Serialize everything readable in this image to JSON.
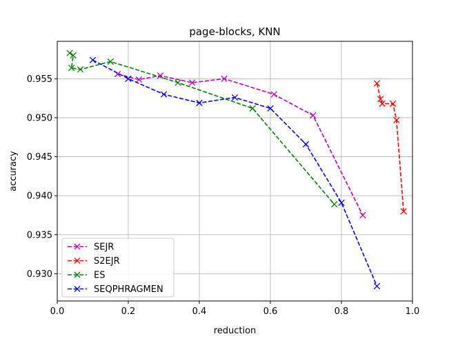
{
  "chart_data": {
    "type": "line",
    "title": "page-blocks, KNN",
    "xlabel": "reduction",
    "ylabel": "accuracy",
    "xlim": [
      0.0,
      1.0
    ],
    "ylim": [
      0.9265,
      0.9598
    ],
    "xticks": [
      0.0,
      0.2,
      0.4,
      0.6,
      0.8,
      1.0
    ],
    "xtick_labels": [
      "0.0",
      "0.2",
      "0.4",
      "0.6",
      "0.8",
      "1.0"
    ],
    "yticks": [
      0.93,
      0.935,
      0.94,
      0.945,
      0.95,
      0.955
    ],
    "ytick_labels": [
      "0.930",
      "0.935",
      "0.940",
      "0.945",
      "0.950",
      "0.955"
    ],
    "grid": true,
    "legend_position": "lower-left",
    "series": [
      {
        "name": "SEJR",
        "color": "#bf00bf",
        "marker": "x",
        "linestyle": "dashed",
        "points": [
          [
            0.17,
            0.9556
          ],
          [
            0.23,
            0.9549
          ],
          [
            0.29,
            0.9554
          ],
          [
            0.38,
            0.9545
          ],
          [
            0.47,
            0.955
          ],
          [
            0.61,
            0.953
          ],
          [
            0.72,
            0.9503
          ],
          [
            0.86,
            0.9375
          ]
        ]
      },
      {
        "name": "S2EJR",
        "color": "#ff0000",
        "marker": "x",
        "linestyle": "dashed",
        "points": [
          [
            0.9,
            0.9544
          ],
          [
            0.91,
            0.9524
          ],
          [
            0.915,
            0.9518
          ],
          [
            0.945,
            0.9518
          ],
          [
            0.955,
            0.9497
          ],
          [
            0.975,
            0.938
          ]
        ]
      },
      {
        "name": "ES",
        "color": "#008000",
        "marker": "x",
        "linestyle": "dashed",
        "points": [
          [
            0.035,
            0.9583
          ],
          [
            0.045,
            0.958
          ],
          [
            0.04,
            0.9564
          ],
          [
            0.065,
            0.9562
          ],
          [
            0.15,
            0.9572
          ],
          [
            0.34,
            0.9545
          ],
          [
            0.55,
            0.9512
          ],
          [
            0.78,
            0.9389
          ]
        ]
      },
      {
        "name": "SEQPHRAGMEN",
        "color": "#0000ff",
        "marker": "x",
        "linestyle": "dashed",
        "points": [
          [
            0.1,
            0.9574
          ],
          [
            0.2,
            0.955
          ],
          [
            0.3,
            0.953
          ],
          [
            0.4,
            0.9519
          ],
          [
            0.5,
            0.9526
          ],
          [
            0.6,
            0.9512
          ],
          [
            0.7,
            0.9466
          ],
          [
            0.8,
            0.9391
          ],
          [
            0.9,
            0.9284
          ]
        ]
      }
    ]
  }
}
